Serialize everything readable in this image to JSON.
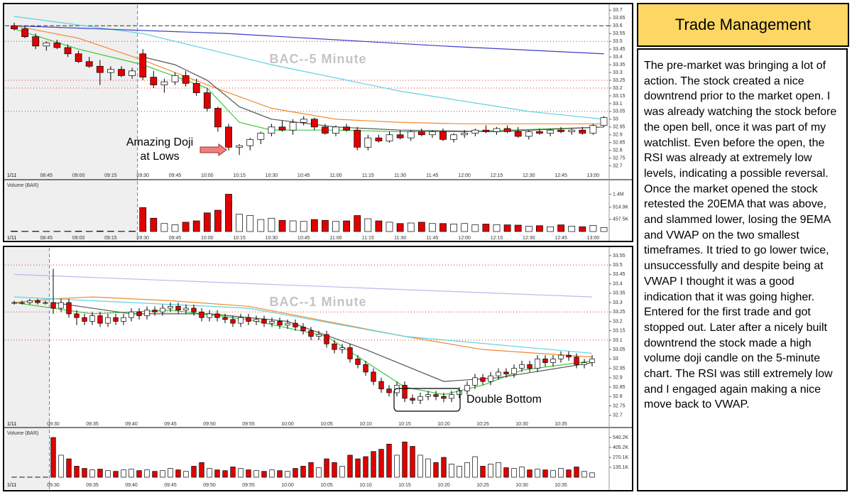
{
  "chart_data": [
    {
      "type": "candlestick",
      "title": "BAC--5 Minute",
      "date_label": "1/11",
      "volume_label": "Volume (BAR)",
      "annotations": [
        "Amazing Doji",
        "at Lows"
      ],
      "session_open_index": 12,
      "up_color": "#ffffff",
      "down_color": "#e00000",
      "categories": [
        null,
        null,
        null,
        "08:45",
        null,
        null,
        "09:00",
        null,
        null,
        "09:15",
        null,
        null,
        "09:30",
        null,
        null,
        "09:45",
        null,
        null,
        "10:00",
        null,
        null,
        "10:15",
        null,
        null,
        "10:30",
        null,
        null,
        "10:45",
        null,
        null,
        "11:00",
        null,
        null,
        "11:15",
        null,
        null,
        "11:30",
        null,
        null,
        "11:45",
        null,
        null,
        "12:00",
        null,
        null,
        "12:15",
        null,
        null,
        "12:30",
        null,
        null,
        "12:45",
        null,
        null,
        "13:00",
        null
      ],
      "open": [
        33.6,
        33.58,
        33.53,
        33.47,
        33.49,
        33.46,
        33.42,
        33.37,
        33.34,
        33.3,
        33.32,
        33.28,
        33.42,
        33.27,
        33.22,
        33.24,
        33.28,
        33.23,
        33.17,
        33.07,
        32.95,
        32.82,
        32.83,
        32.87,
        32.91,
        32.95,
        32.93,
        32.98,
        33.0,
        32.95,
        32.91,
        32.95,
        32.93,
        32.82,
        32.88,
        32.86,
        32.9,
        32.88,
        32.92,
        32.9,
        32.92,
        32.87,
        32.9,
        32.91,
        32.93,
        32.92,
        32.94,
        32.92,
        32.89,
        32.92,
        32.91,
        32.93,
        32.92,
        32.93,
        32.91,
        32.96
      ],
      "high": [
        33.62,
        33.6,
        33.55,
        33.5,
        33.51,
        33.48,
        33.44,
        33.4,
        33.38,
        33.34,
        33.34,
        33.33,
        33.45,
        33.31,
        33.26,
        33.3,
        33.31,
        33.26,
        33.2,
        33.08,
        32.97,
        32.84,
        32.88,
        32.92,
        32.97,
        32.99,
        33.0,
        33.02,
        33.01,
        32.97,
        32.96,
        32.97,
        32.95,
        32.9,
        32.9,
        32.92,
        32.93,
        32.93,
        32.94,
        32.93,
        32.94,
        32.91,
        32.93,
        32.94,
        32.96,
        32.95,
        32.96,
        32.95,
        32.93,
        32.94,
        32.94,
        32.95,
        32.94,
        32.95,
        32.97,
        33.02
      ],
      "low": [
        33.57,
        33.52,
        33.45,
        33.44,
        33.45,
        33.4,
        33.36,
        33.33,
        33.22,
        33.25,
        33.27,
        33.26,
        33.25,
        33.2,
        33.17,
        33.22,
        33.21,
        33.15,
        33.05,
        32.92,
        32.8,
        32.77,
        32.8,
        32.84,
        32.89,
        32.92,
        32.9,
        32.96,
        32.93,
        32.9,
        32.89,
        32.92,
        32.8,
        32.8,
        32.85,
        32.85,
        32.87,
        32.86,
        32.89,
        32.88,
        32.86,
        32.85,
        32.88,
        32.89,
        32.91,
        32.9,
        32.91,
        32.88,
        32.87,
        32.9,
        32.89,
        32.91,
        32.9,
        32.9,
        32.9,
        32.95
      ],
      "close": [
        33.58,
        33.53,
        33.47,
        33.49,
        33.46,
        33.42,
        33.37,
        33.34,
        33.3,
        33.32,
        33.28,
        33.31,
        33.27,
        33.22,
        33.24,
        33.28,
        33.23,
        33.17,
        33.07,
        32.95,
        32.82,
        32.83,
        32.87,
        32.91,
        32.95,
        32.93,
        32.98,
        33.0,
        32.95,
        32.91,
        32.95,
        32.93,
        32.82,
        32.88,
        32.86,
        32.9,
        32.88,
        32.92,
        32.9,
        32.92,
        32.87,
        32.9,
        32.91,
        32.93,
        32.92,
        32.94,
        32.92,
        32.89,
        32.92,
        32.91,
        32.93,
        32.92,
        32.93,
        32.91,
        32.96,
        33.01
      ],
      "volume": [
        15000,
        10000,
        12000,
        8000,
        9000,
        11000,
        14000,
        10000,
        20000,
        12000,
        9000,
        15000,
        900000,
        500000,
        300000,
        250000,
        350000,
        400000,
        700000,
        800000,
        1400000,
        650000,
        600000,
        450000,
        500000,
        420000,
        400000,
        380000,
        450000,
        420000,
        380000,
        400000,
        600000,
        480000,
        400000,
        350000,
        300000,
        320000,
        350000,
        300000,
        300000,
        280000,
        300000,
        250000,
        280000,
        260000,
        250000,
        240000,
        200000,
        220000,
        180000,
        250000,
        200000,
        180000,
        230000,
        150000
      ],
      "ylim": [
        32.68,
        33.72
      ],
      "yticks": [
        32.7,
        32.75,
        32.8,
        32.85,
        32.9,
        32.95,
        33,
        33.05,
        33.1,
        33.15,
        33.2,
        33.25,
        33.3,
        33.35,
        33.4,
        33.45,
        33.5,
        33.55,
        33.6,
        33.65,
        33.7
      ],
      "volume_ylim": [
        0,
        1600000
      ],
      "volume_yticks": [
        {
          "value": 457500,
          "label": "457.5K"
        },
        {
          "value": 914900,
          "label": "914.9K"
        },
        {
          "value": 1400000,
          "label": "1.4M"
        }
      ],
      "levels": [
        {
          "value": 33.6,
          "color": "#333333",
          "style": "dashed"
        },
        {
          "value": 33.5,
          "color": "#e03030",
          "style": "dotted"
        },
        {
          "value": 33.25,
          "color": "#e03030",
          "style": "dotted"
        },
        {
          "value": 33.2,
          "color": "#e03030",
          "style": "dotted"
        },
        {
          "value": 33.05,
          "color": "#e03030",
          "style": "dotted"
        }
      ],
      "lines": [
        {
          "color": "#5fd3e0",
          "x": [
            0,
            12,
            24,
            36,
            48,
            55
          ],
          "values": [
            33.66,
            33.55,
            33.35,
            33.18,
            33.05,
            33.0
          ]
        },
        {
          "color": "#3c3cc8",
          "x": [
            0,
            20,
            40,
            55
          ],
          "values": [
            33.6,
            33.55,
            33.47,
            33.42
          ]
        },
        {
          "color": "#f08a30",
          "x": [
            0,
            6,
            12,
            18,
            24,
            30,
            36,
            42,
            55
          ],
          "values": [
            33.6,
            33.52,
            33.38,
            33.22,
            33.07,
            33.0,
            32.98,
            32.97,
            32.97
          ]
        },
        {
          "color": "#3cc83c",
          "x": [
            0,
            6,
            12,
            18,
            21,
            24,
            30,
            36,
            42,
            55
          ],
          "values": [
            33.58,
            33.45,
            33.35,
            33.2,
            32.98,
            32.93,
            32.93,
            32.92,
            32.92,
            32.95
          ]
        },
        {
          "color": "#555555",
          "x": [
            12,
            15,
            18,
            21,
            24,
            30,
            36,
            45,
            55
          ],
          "values": [
            33.4,
            33.35,
            33.25,
            33.08,
            33.0,
            32.95,
            32.93,
            32.92,
            32.95
          ]
        }
      ]
    },
    {
      "type": "candlestick",
      "title": "BAC--1 Minute",
      "date_label": "1/11",
      "volume_label": "Volume (BAR)",
      "annotations": [
        "Double Bottom"
      ],
      "session_open_index": 5,
      "up_color": "#ffffff",
      "down_color": "#e00000",
      "categories": [
        null,
        null,
        null,
        null,
        null,
        "09:30",
        null,
        null,
        null,
        null,
        "09:35",
        null,
        null,
        null,
        null,
        "09:40",
        null,
        null,
        null,
        null,
        "09:45",
        null,
        null,
        null,
        null,
        "09:50",
        null,
        null,
        null,
        null,
        "09:55",
        null,
        null,
        null,
        null,
        "10:00",
        null,
        null,
        null,
        null,
        "10:05",
        null,
        null,
        null,
        null,
        "10:10",
        null,
        null,
        null,
        null,
        "10:15",
        null,
        null,
        null,
        null,
        "10:20",
        null,
        null,
        null,
        null,
        "10:25",
        null,
        null,
        null,
        null,
        "10:30",
        null,
        null,
        null,
        null,
        "10:35",
        null,
        null,
        null,
        null
      ],
      "open": [
        33.3,
        33.3,
        33.3,
        33.31,
        33.3,
        33.3,
        33.27,
        33.3,
        33.24,
        33.22,
        33.2,
        33.23,
        33.19,
        33.22,
        33.2,
        33.22,
        33.25,
        33.23,
        33.26,
        33.25,
        33.27,
        33.28,
        33.26,
        33.27,
        33.25,
        33.22,
        33.24,
        33.22,
        33.21,
        33.19,
        33.22,
        33.2,
        33.21,
        33.19,
        33.2,
        33.18,
        33.19,
        33.17,
        33.15,
        33.12,
        33.13,
        33.08,
        33.05,
        33.06,
        33.0,
        32.97,
        32.93,
        32.88,
        32.84,
        32.82,
        32.86,
        32.79,
        32.78,
        32.8,
        32.81,
        32.8,
        32.79,
        32.81,
        32.83,
        32.86,
        32.9,
        32.88,
        32.91,
        32.93,
        32.92,
        32.95,
        32.97,
        32.95,
        33.0,
        32.98,
        33.0,
        33.02,
        33.01,
        32.97,
        32.98
      ],
      "high": [
        33.31,
        33.31,
        33.32,
        33.32,
        33.31,
        33.48,
        33.32,
        33.32,
        33.26,
        33.24,
        33.25,
        33.25,
        33.24,
        33.24,
        33.24,
        33.27,
        33.27,
        33.28,
        33.28,
        33.29,
        33.3,
        33.3,
        33.29,
        33.29,
        33.27,
        33.26,
        33.26,
        33.24,
        33.23,
        33.24,
        33.24,
        33.23,
        33.23,
        33.22,
        33.22,
        33.21,
        33.21,
        33.19,
        33.17,
        33.15,
        33.15,
        33.1,
        33.08,
        33.08,
        33.02,
        32.99,
        32.95,
        32.9,
        32.86,
        32.88,
        32.88,
        32.81,
        32.82,
        32.83,
        32.83,
        32.82,
        32.83,
        32.85,
        32.88,
        32.92,
        32.92,
        32.93,
        32.95,
        32.95,
        32.97,
        32.99,
        32.99,
        33.02,
        33.02,
        33.02,
        33.04,
        33.04,
        33.03,
        33.0,
        33.02
      ],
      "low": [
        33.29,
        33.29,
        33.29,
        33.29,
        33.29,
        33.24,
        33.25,
        33.22,
        33.18,
        33.18,
        33.18,
        33.17,
        33.17,
        33.18,
        33.18,
        33.2,
        33.21,
        33.21,
        33.23,
        33.23,
        33.25,
        33.24,
        33.24,
        33.23,
        33.2,
        33.2,
        33.2,
        33.19,
        33.17,
        33.17,
        33.18,
        33.18,
        33.17,
        33.17,
        33.16,
        33.16,
        33.15,
        33.13,
        33.1,
        33.1,
        33.06,
        33.03,
        33.03,
        32.98,
        32.95,
        32.91,
        32.86,
        32.82,
        32.8,
        32.8,
        32.77,
        32.76,
        32.76,
        32.78,
        32.78,
        32.77,
        32.77,
        32.79,
        32.81,
        32.84,
        32.86,
        32.86,
        32.89,
        32.9,
        32.9,
        32.93,
        32.93,
        32.93,
        32.96,
        32.96,
        32.98,
        32.99,
        32.95,
        32.95,
        32.96
      ],
      "close": [
        33.3,
        33.3,
        33.31,
        33.3,
        33.3,
        33.27,
        33.3,
        33.24,
        33.22,
        33.2,
        33.23,
        33.19,
        33.22,
        33.2,
        33.22,
        33.25,
        33.23,
        33.26,
        33.25,
        33.27,
        33.28,
        33.26,
        33.27,
        33.25,
        33.22,
        33.24,
        33.22,
        33.21,
        33.19,
        33.22,
        33.2,
        33.21,
        33.19,
        33.2,
        33.18,
        33.19,
        33.17,
        33.15,
        33.12,
        33.13,
        33.08,
        33.05,
        33.06,
        33.0,
        32.97,
        32.93,
        32.88,
        32.84,
        32.82,
        32.86,
        32.79,
        32.78,
        32.8,
        32.81,
        32.8,
        32.79,
        32.81,
        32.83,
        32.86,
        32.9,
        32.88,
        32.91,
        32.93,
        32.92,
        32.95,
        32.97,
        32.95,
        33.0,
        32.98,
        33.0,
        33.02,
        33.01,
        32.97,
        32.98,
        33.0
      ],
      "volume": [
        2000,
        2000,
        2000,
        2000,
        2000,
        540000,
        300000,
        250000,
        150000,
        120000,
        100000,
        110000,
        90000,
        80000,
        100000,
        110000,
        90000,
        100000,
        80000,
        90000,
        120000,
        100000,
        80000,
        150000,
        200000,
        120000,
        100000,
        90000,
        140000,
        120000,
        100000,
        90000,
        80000,
        100000,
        90000,
        80000,
        120000,
        150000,
        200000,
        130000,
        250000,
        200000,
        150000,
        300000,
        250000,
        280000,
        350000,
        380000,
        450000,
        300000,
        480000,
        420000,
        300000,
        250000,
        200000,
        270000,
        180000,
        150000,
        200000,
        280000,
        150000,
        180000,
        200000,
        130000,
        120000,
        140000,
        100000,
        110000,
        100000,
        90000,
        120000,
        100000,
        140000,
        80000,
        60000
      ],
      "ylim": [
        32.68,
        33.58
      ],
      "yticks": [
        32.7,
        32.75,
        32.8,
        32.85,
        32.9,
        32.95,
        33,
        33.05,
        33.1,
        33.15,
        33.2,
        33.25,
        33.3,
        33.35,
        33.4,
        33.45,
        33.5,
        33.55
      ],
      "volume_ylim": [
        0,
        560000
      ],
      "volume_yticks": [
        {
          "value": 135100,
          "label": "135.1K"
        },
        {
          "value": 270100,
          "label": "270.1K"
        },
        {
          "value": 405200,
          "label": "405.2K"
        },
        {
          "value": 540200,
          "label": "540.2K"
        }
      ],
      "levels": [
        {
          "value": 33.5,
          "color": "#e03030",
          "style": "dotted"
        },
        {
          "value": 33.25,
          "color": "#e03030",
          "style": "dotted"
        },
        {
          "value": 33.1,
          "color": "#e03030",
          "style": "dotted"
        }
      ],
      "lines": [
        {
          "color": "#f08a30",
          "x": [
            0,
            5,
            10,
            20,
            30,
            40,
            50,
            60,
            74
          ],
          "values": [
            33.3,
            33.32,
            33.33,
            33.31,
            33.28,
            33.2,
            33.12,
            33.05,
            33.01
          ]
        },
        {
          "color": "#5fd3e0",
          "x": [
            0,
            10,
            30,
            50,
            74
          ],
          "values": [
            33.33,
            33.31,
            33.27,
            33.12,
            33.03
          ]
        },
        {
          "color": "#b8b8f0",
          "x": [
            0,
            74
          ],
          "values": [
            33.45,
            33.33
          ]
        },
        {
          "color": "#3cc83c",
          "x": [
            0,
            10,
            20,
            30,
            40,
            50,
            55,
            60,
            65,
            74
          ],
          "values": [
            33.3,
            33.24,
            33.26,
            33.21,
            33.12,
            32.85,
            32.81,
            32.86,
            32.94,
            32.99
          ]
        },
        {
          "color": "#555555",
          "x": [
            5,
            15,
            25,
            35,
            45,
            55,
            62,
            74
          ],
          "values": [
            33.3,
            33.24,
            33.24,
            33.2,
            33.05,
            32.88,
            32.9,
            32.98
          ]
        }
      ]
    }
  ],
  "panel": {
    "title": "Trade Management",
    "body": "The pre-market was bringing a lot of action. The stock created a nice downtrend prior to the market open. I was already watching the stock before the open bell, once it was part of my watchlist. Even before the open, the RSI was already at extremely low levels, indicating a possible reversal. Once the market opened the stock retested the 20EMA that was above, and slammed lower, losing the 9EMA and VWAP on the two smallest timeframes. It tried to go lower twice, unsuccessfully and despite being at VWAP I thought it was a good indication that it was going higher. Entered for the first trade and got stopped out. Later after a nicely built downtrend the stock made a high volume doji candle on the 5-minute chart. The RSI was still extremely low and I engaged again making a nice move back to VWAP."
  }
}
